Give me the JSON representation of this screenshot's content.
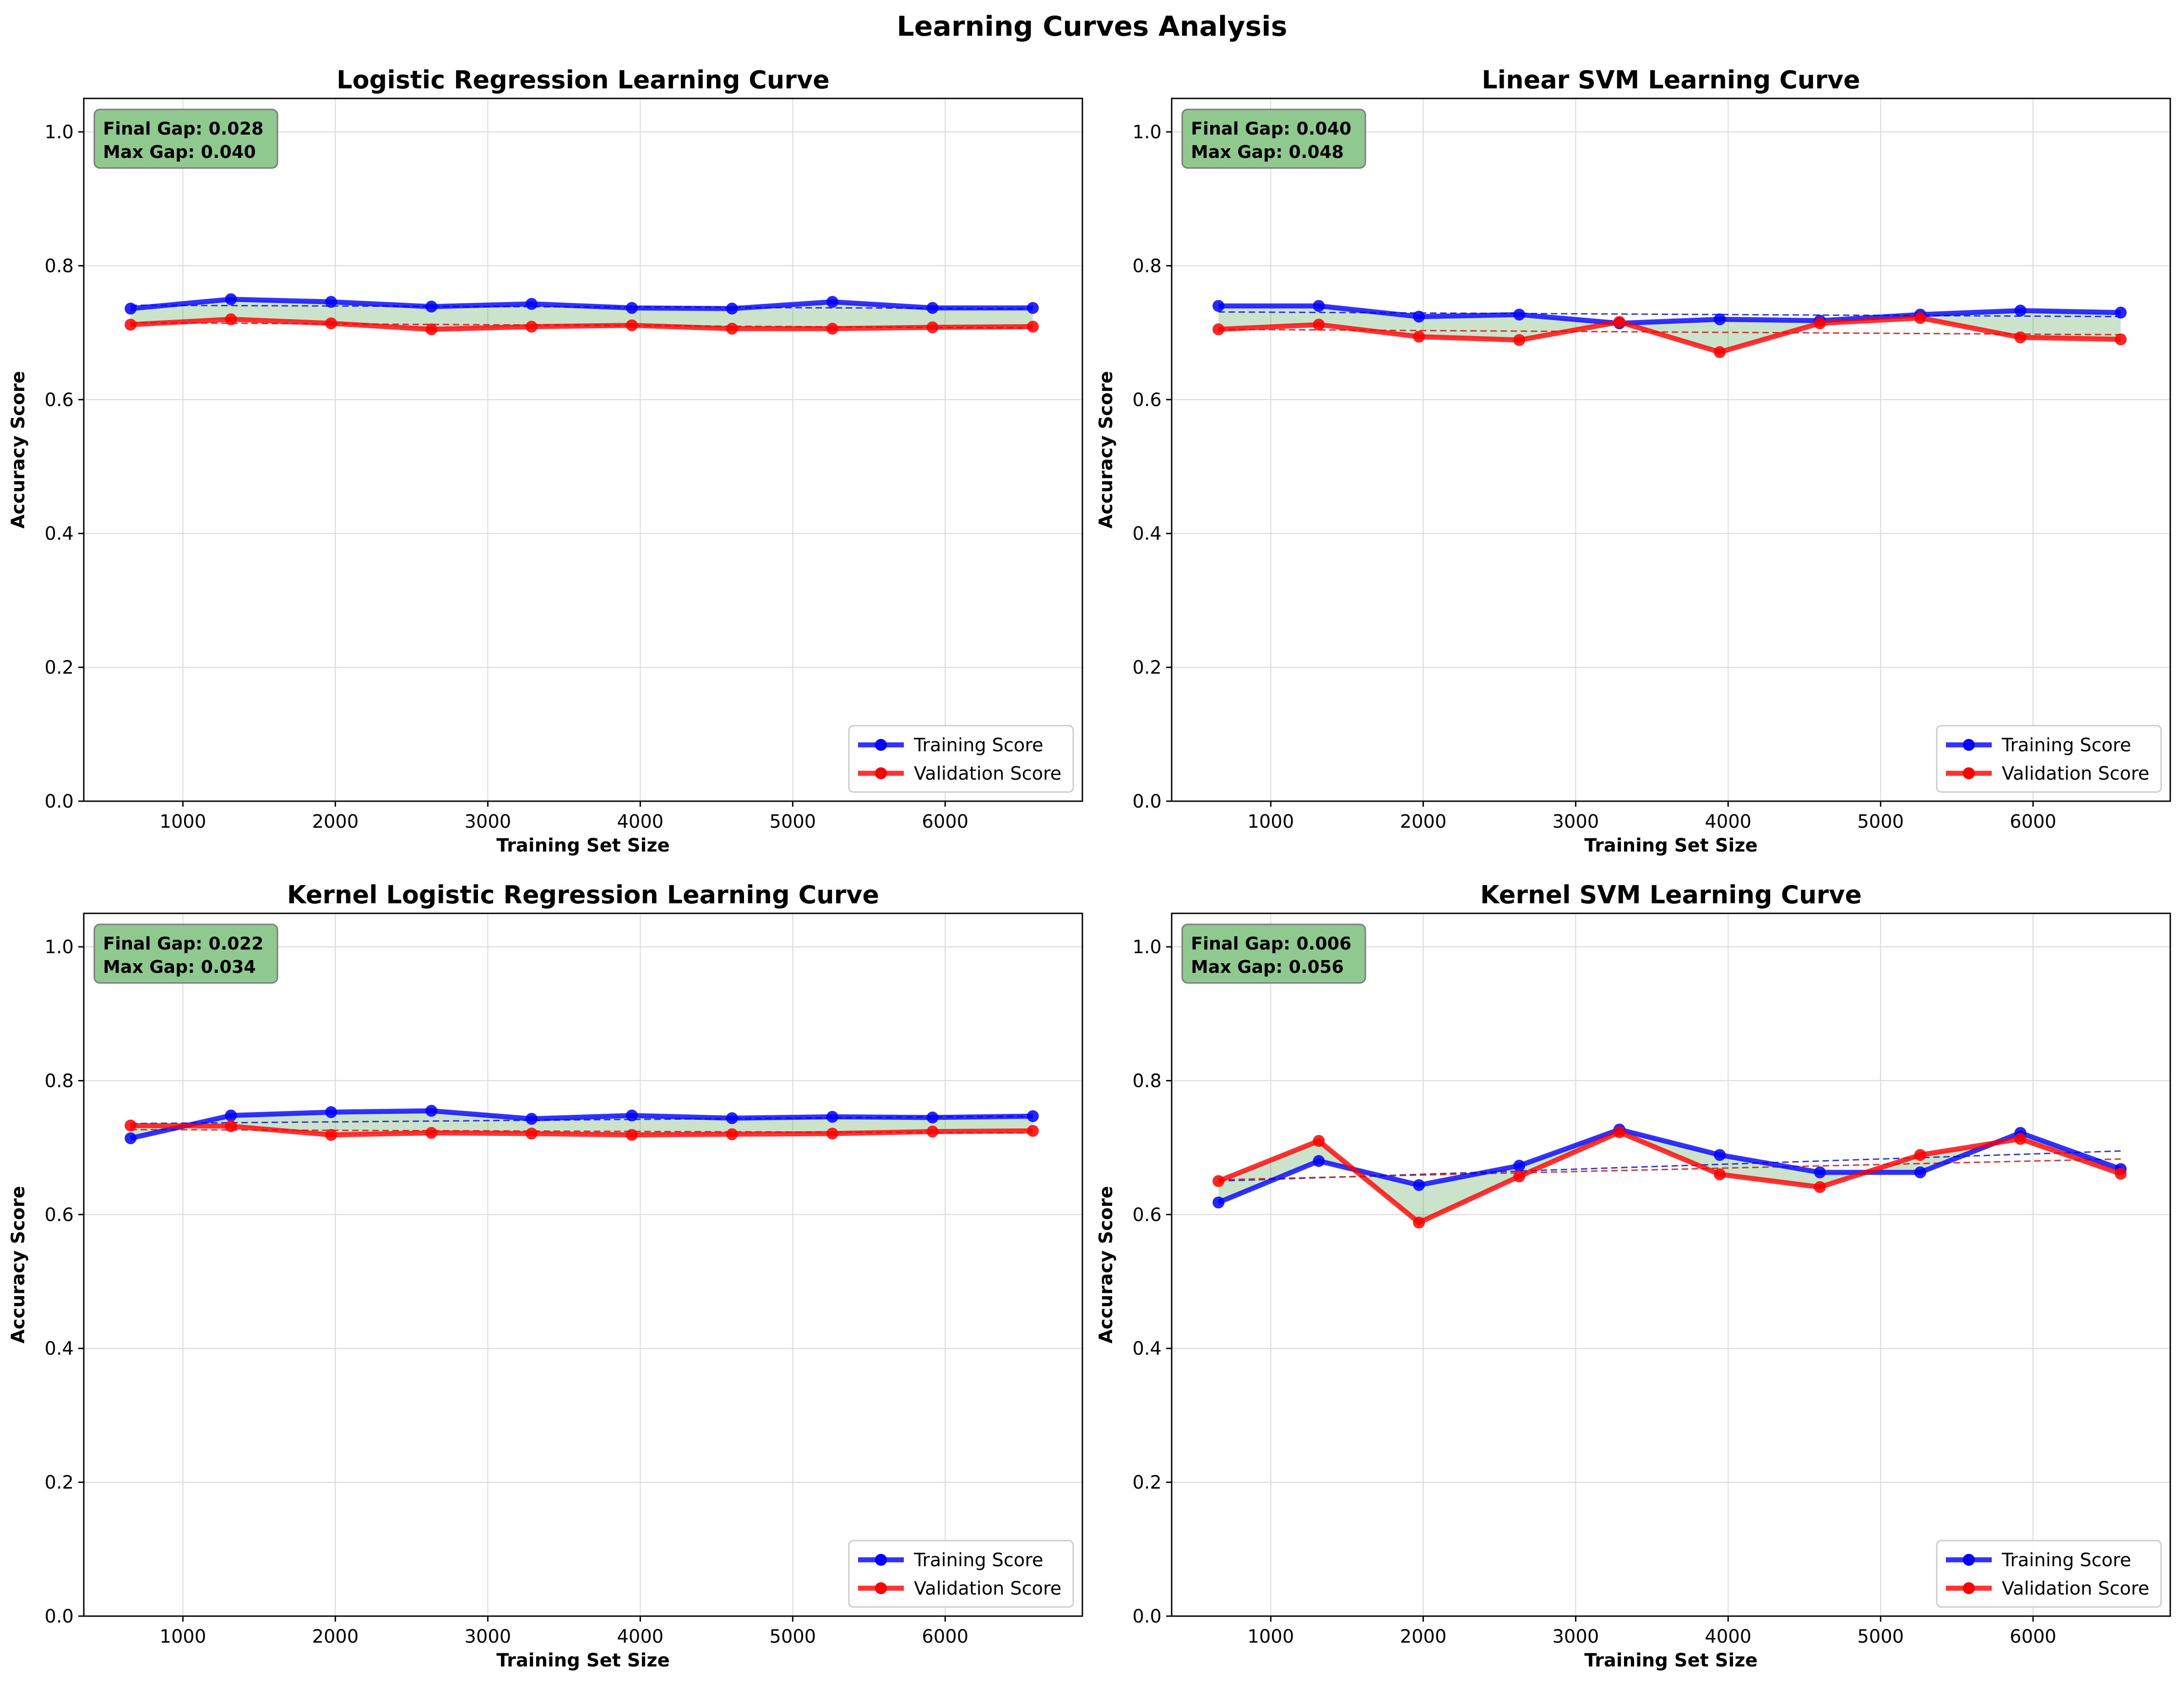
{
  "figure": {
    "suptitle": "Learning Curves Analysis"
  },
  "legend_labels": {
    "training": "Training Score",
    "validation": "Validation Score"
  },
  "colors": {
    "training": "#0000ff",
    "validation": "#ff0000",
    "fill": "#2e8b2e",
    "gapbox": "#8fc98f",
    "grid": "#d9d9d9"
  },
  "chart_data": [
    {
      "type": "line",
      "title": "Logistic Regression Learning Curve",
      "xlabel": "Training Set Size",
      "ylabel": "Accuracy Score",
      "xlim": [
        350,
        6900
      ],
      "ylim": [
        0.0,
        1.05
      ],
      "xticks": [
        1000,
        2000,
        3000,
        4000,
        5000,
        6000
      ],
      "yticks": [
        0.0,
        0.2,
        0.4,
        0.6,
        0.8,
        1.0
      ],
      "grid": true,
      "legend_position": "lower-right",
      "gap_text": [
        "Final Gap: 0.028",
        "Max Gap: 0.040"
      ],
      "x": [
        657,
        1315,
        1972,
        2630,
        3287,
        3945,
        4602,
        5260,
        5917,
        6575
      ],
      "series": [
        {
          "name": "Training Score",
          "values": [
            0.736,
            0.75,
            0.746,
            0.739,
            0.743,
            0.737,
            0.736,
            0.746,
            0.737,
            0.737
          ]
        },
        {
          "name": "Validation Score",
          "values": [
            0.712,
            0.72,
            0.714,
            0.705,
            0.709,
            0.711,
            0.706,
            0.706,
            0.708,
            0.709
          ]
        }
      ],
      "trend": {
        "training": [
          0.741,
          0.736
        ],
        "validation": [
          0.715,
          0.707
        ]
      }
    },
    {
      "type": "line",
      "title": "Linear SVM Learning Curve",
      "xlabel": "Training Set Size",
      "ylabel": "Accuracy Score",
      "xlim": [
        350,
        6900
      ],
      "ylim": [
        0.0,
        1.05
      ],
      "xticks": [
        1000,
        2000,
        3000,
        4000,
        5000,
        6000
      ],
      "yticks": [
        0.0,
        0.2,
        0.4,
        0.6,
        0.8,
        1.0
      ],
      "grid": true,
      "legend_position": "lower-right",
      "gap_text": [
        "Final Gap: 0.040",
        "Max Gap: 0.048"
      ],
      "x": [
        657,
        1315,
        1972,
        2630,
        3287,
        3945,
        4602,
        5260,
        5917,
        6575
      ],
      "series": [
        {
          "name": "Training Score",
          "values": [
            0.74,
            0.74,
            0.724,
            0.727,
            0.714,
            0.72,
            0.718,
            0.727,
            0.733,
            0.73
          ]
        },
        {
          "name": "Validation Score",
          "values": [
            0.705,
            0.712,
            0.694,
            0.689,
            0.716,
            0.671,
            0.714,
            0.722,
            0.693,
            0.69
          ]
        }
      ],
      "trend": {
        "training": [
          0.731,
          0.724
        ],
        "validation": [
          0.705,
          0.697
        ]
      }
    },
    {
      "type": "line",
      "title": "Kernel Logistic Regression Learning Curve",
      "xlabel": "Training Set Size",
      "ylabel": "Accuracy Score",
      "xlim": [
        350,
        6900
      ],
      "ylim": [
        0.0,
        1.05
      ],
      "xticks": [
        1000,
        2000,
        3000,
        4000,
        5000,
        6000
      ],
      "yticks": [
        0.0,
        0.2,
        0.4,
        0.6,
        0.8,
        1.0
      ],
      "grid": true,
      "legend_position": "lower-right",
      "gap_text": [
        "Final Gap: 0.022",
        "Max Gap: 0.034"
      ],
      "x": [
        657,
        1315,
        1972,
        2630,
        3287,
        3945,
        4602,
        5260,
        5917,
        6575
      ],
      "series": [
        {
          "name": "Training Score",
          "values": [
            0.714,
            0.748,
            0.753,
            0.755,
            0.743,
            0.748,
            0.744,
            0.746,
            0.745,
            0.747
          ]
        },
        {
          "name": "Validation Score",
          "values": [
            0.733,
            0.732,
            0.719,
            0.722,
            0.721,
            0.719,
            0.72,
            0.721,
            0.724,
            0.725
          ]
        }
      ],
      "trend": {
        "training": [
          0.736,
          0.747
        ],
        "validation": [
          0.727,
          0.722
        ]
      }
    },
    {
      "type": "line",
      "title": "Kernel SVM Learning Curve",
      "xlabel": "Training Set Size",
      "ylabel": "Accuracy Score",
      "xlim": [
        350,
        6900
      ],
      "ylim": [
        0.0,
        1.05
      ],
      "xticks": [
        1000,
        2000,
        3000,
        4000,
        5000,
        6000
      ],
      "yticks": [
        0.0,
        0.2,
        0.4,
        0.6,
        0.8,
        1.0
      ],
      "grid": true,
      "legend_position": "lower-right",
      "gap_text": [
        "Final Gap: 0.006",
        "Max Gap: 0.056"
      ],
      "x": [
        657,
        1315,
        1972,
        2630,
        3287,
        3945,
        4602,
        5260,
        5917,
        6575
      ],
      "series": [
        {
          "name": "Training Score",
          "values": [
            0.618,
            0.68,
            0.644,
            0.673,
            0.727,
            0.689,
            0.663,
            0.663,
            0.722,
            0.668
          ]
        },
        {
          "name": "Validation Score",
          "values": [
            0.65,
            0.71,
            0.588,
            0.657,
            0.723,
            0.66,
            0.641,
            0.689,
            0.713,
            0.661
          ]
        }
      ],
      "trend": {
        "training": [
          0.65,
          0.695
        ],
        "validation": [
          0.652,
          0.683
        ]
      }
    }
  ]
}
